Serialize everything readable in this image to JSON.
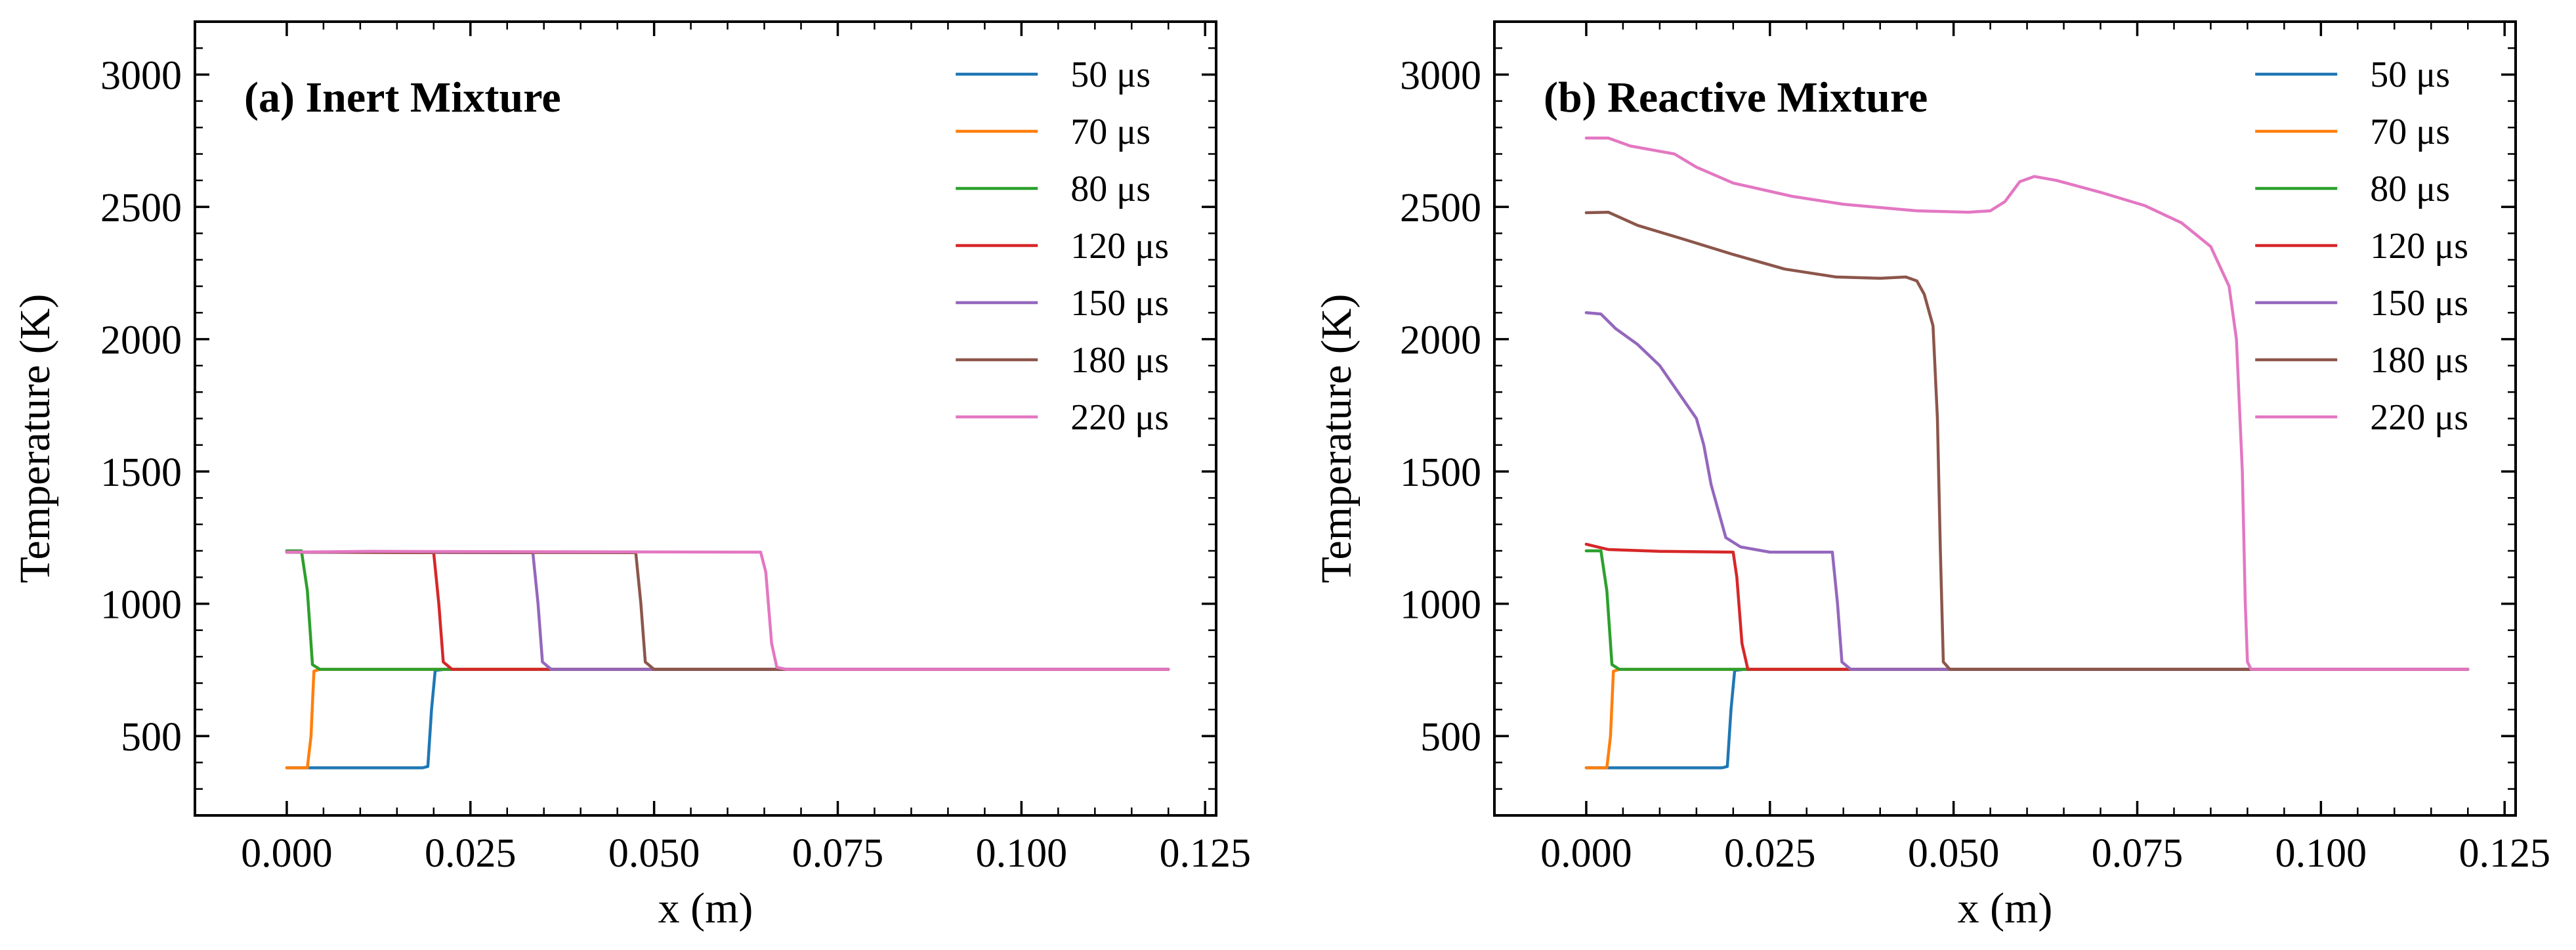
{
  "chart_data": [
    {
      "type": "line",
      "title": "(a) Inert Mixture",
      "xlabel": "x (m)",
      "ylabel": "Temperature (K)",
      "xlim": [
        -0.0125,
        0.1265
      ],
      "ylim": [
        200,
        3200
      ],
      "xticks": [
        0.0,
        0.025,
        0.05,
        0.075,
        0.1,
        0.125
      ],
      "xtick_labels": [
        "0.000",
        "0.025",
        "0.050",
        "0.075",
        "0.100",
        "0.125"
      ],
      "yticks": [
        500,
        1000,
        1500,
        2000,
        2500,
        3000
      ],
      "ytick_labels": [
        "500",
        "1000",
        "1500",
        "2000",
        "2500",
        "3000"
      ],
      "legend_position": "top-right",
      "series": [
        {
          "name": "50 μs",
          "color": "#1f77b4",
          "points": [
            [
              0.0,
              380
            ],
            [
              0.0185,
              380
            ],
            [
              0.0192,
              385
            ],
            [
              0.0197,
              600
            ],
            [
              0.0202,
              748
            ],
            [
              0.0215,
              752
            ],
            [
              0.12,
              752
            ]
          ]
        },
        {
          "name": "70 μs",
          "color": "#ff7f0e",
          "points": [
            [
              0.0,
              380
            ],
            [
              0.0028,
              380
            ],
            [
              0.0033,
              500
            ],
            [
              0.0037,
              745
            ],
            [
              0.0045,
              752
            ],
            [
              0.12,
              752
            ]
          ]
        },
        {
          "name": "80 μs",
          "color": "#2ca02c",
          "points": [
            [
              0.0,
              1200
            ],
            [
              0.002,
              1200
            ],
            [
              0.0028,
              1050
            ],
            [
              0.0035,
              770
            ],
            [
              0.0045,
              752
            ],
            [
              0.12,
              752
            ]
          ]
        },
        {
          "name": "120 μs",
          "color": "#d62728",
          "points": [
            [
              0.0,
              1195
            ],
            [
              0.02,
              1193
            ],
            [
              0.0207,
              1000
            ],
            [
              0.0213,
              780
            ],
            [
              0.0225,
              752
            ],
            [
              0.12,
              752
            ]
          ]
        },
        {
          "name": "150 μs",
          "color": "#9467bd",
          "points": [
            [
              0.0,
              1195
            ],
            [
              0.0335,
              1193
            ],
            [
              0.0342,
              1000
            ],
            [
              0.0348,
              780
            ],
            [
              0.036,
              752
            ],
            [
              0.12,
              752
            ]
          ]
        },
        {
          "name": "180 μs",
          "color": "#8c564b",
          "points": [
            [
              0.0,
              1195
            ],
            [
              0.0475,
              1193
            ],
            [
              0.0482,
              1000
            ],
            [
              0.0488,
              780
            ],
            [
              0.05,
              752
            ],
            [
              0.12,
              752
            ]
          ]
        },
        {
          "name": "220 μs",
          "color": "#e377c2",
          "points": [
            [
              0.0,
              1195
            ],
            [
              0.0115,
              1198
            ],
            [
              0.0645,
              1195
            ],
            [
              0.0652,
              1120
            ],
            [
              0.066,
              850
            ],
            [
              0.0667,
              760
            ],
            [
              0.068,
              752
            ],
            [
              0.12,
              752
            ]
          ]
        }
      ]
    },
    {
      "type": "line",
      "title": "(b) Reactive Mixture",
      "xlabel": "x (m)",
      "ylabel": "Temperature (K)",
      "xlim": [
        -0.0125,
        0.1265
      ],
      "ylim": [
        200,
        3200
      ],
      "xticks": [
        0.0,
        0.025,
        0.05,
        0.075,
        0.1,
        0.125
      ],
      "xtick_labels": [
        "0.000",
        "0.025",
        "0.050",
        "0.075",
        "0.100",
        "0.125"
      ],
      "yticks": [
        500,
        1000,
        1500,
        2000,
        2500,
        3000
      ],
      "ytick_labels": [
        "500",
        "1000",
        "1500",
        "2000",
        "2500",
        "3000"
      ],
      "legend_position": "top-right",
      "series": [
        {
          "name": "50 μs",
          "color": "#1f77b4",
          "points": [
            [
              0.0,
              380
            ],
            [
              0.0185,
              380
            ],
            [
              0.0192,
              385
            ],
            [
              0.0197,
              600
            ],
            [
              0.0202,
              748
            ],
            [
              0.0215,
              752
            ],
            [
              0.12,
              752
            ]
          ]
        },
        {
          "name": "70 μs",
          "color": "#ff7f0e",
          "points": [
            [
              0.0,
              380
            ],
            [
              0.0028,
              380
            ],
            [
              0.0033,
              500
            ],
            [
              0.0037,
              745
            ],
            [
              0.0045,
              752
            ],
            [
              0.12,
              752
            ]
          ]
        },
        {
          "name": "80 μs",
          "color": "#2ca02c",
          "points": [
            [
              0.0,
              1200
            ],
            [
              0.002,
              1200
            ],
            [
              0.0028,
              1050
            ],
            [
              0.0035,
              770
            ],
            [
              0.0045,
              752
            ],
            [
              0.12,
              752
            ]
          ]
        },
        {
          "name": "120 μs",
          "color": "#d62728",
          "points": [
            [
              0.0,
              1225
            ],
            [
              0.003,
              1205
            ],
            [
              0.01,
              1198
            ],
            [
              0.02,
              1195
            ],
            [
              0.0205,
              1100
            ],
            [
              0.0212,
              850
            ],
            [
              0.022,
              752
            ],
            [
              0.12,
              752
            ]
          ]
        },
        {
          "name": "150 μs",
          "color": "#9467bd",
          "points": [
            [
              0.0,
              2100
            ],
            [
              0.002,
              2095
            ],
            [
              0.004,
              2040
            ],
            [
              0.007,
              1980
            ],
            [
              0.01,
              1900
            ],
            [
              0.013,
              1780
            ],
            [
              0.015,
              1700
            ],
            [
              0.016,
              1600
            ],
            [
              0.017,
              1450
            ],
            [
              0.018,
              1350
            ],
            [
              0.019,
              1250
            ],
            [
              0.021,
              1215
            ],
            [
              0.025,
              1195
            ],
            [
              0.0335,
              1195
            ],
            [
              0.0342,
              1000
            ],
            [
              0.0348,
              780
            ],
            [
              0.036,
              752
            ],
            [
              0.12,
              752
            ]
          ]
        },
        {
          "name": "180 μs",
          "color": "#8c564b",
          "points": [
            [
              0.0,
              2478
            ],
            [
              0.003,
              2480
            ],
            [
              0.007,
              2430
            ],
            [
              0.013,
              2380
            ],
            [
              0.02,
              2320
            ],
            [
              0.027,
              2265
            ],
            [
              0.034,
              2235
            ],
            [
              0.04,
              2230
            ],
            [
              0.0435,
              2235
            ],
            [
              0.045,
              2220
            ],
            [
              0.046,
              2170
            ],
            [
              0.0472,
              2050
            ],
            [
              0.0478,
              1700
            ],
            [
              0.0482,
              1200
            ],
            [
              0.0486,
              780
            ],
            [
              0.0495,
              752
            ],
            [
              0.12,
              752
            ]
          ]
        },
        {
          "name": "220 μs",
          "color": "#e377c2",
          "points": [
            [
              0.0,
              2760
            ],
            [
              0.003,
              2760
            ],
            [
              0.006,
              2730
            ],
            [
              0.012,
              2700
            ],
            [
              0.015,
              2650
            ],
            [
              0.02,
              2590
            ],
            [
              0.028,
              2540
            ],
            [
              0.035,
              2510
            ],
            [
              0.045,
              2485
            ],
            [
              0.052,
              2480
            ],
            [
              0.055,
              2485
            ],
            [
              0.057,
              2520
            ],
            [
              0.059,
              2595
            ],
            [
              0.061,
              2615
            ],
            [
              0.064,
              2600
            ],
            [
              0.07,
              2555
            ],
            [
              0.076,
              2505
            ],
            [
              0.081,
              2440
            ],
            [
              0.085,
              2350
            ],
            [
              0.0875,
              2200
            ],
            [
              0.0885,
              2000
            ],
            [
              0.0893,
              1500
            ],
            [
              0.0897,
              1000
            ],
            [
              0.09,
              780
            ],
            [
              0.0905,
              752
            ],
            [
              0.12,
              752
            ]
          ]
        }
      ]
    }
  ]
}
